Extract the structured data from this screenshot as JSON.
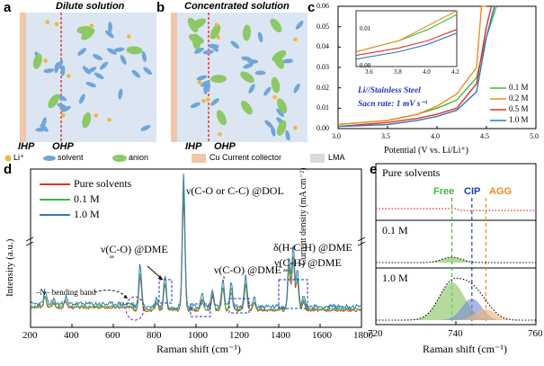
{
  "panels": {
    "a": {
      "label": "a",
      "title": "Dilute solution",
      "ihp": "IHP",
      "ohp": "OHP"
    },
    "b": {
      "label": "b",
      "title": "Concentrated solution",
      "ihp": "IHP",
      "ohp": "OHP"
    },
    "c": {
      "label": "c"
    },
    "d": {
      "label": "d"
    },
    "e": {
      "label": "e"
    }
  },
  "legend_ab": {
    "items": [
      "Li⁺",
      "solvent",
      "anion",
      "Cu Current collector",
      "LMA"
    ]
  },
  "colors": {
    "li": "#f2b63c",
    "solvent": "#6fa6d8",
    "anion": "#8cc866",
    "cu": "#f2c6a8",
    "lma": "#d9d9d9",
    "bg": "#dce6f3",
    "red": "#e0302b",
    "green": "#3dbb3d",
    "blue": "#3778b0",
    "orange": "#f08b1c",
    "navy": "#1f3fa8"
  },
  "chart_data": [
    {
      "panel": "c",
      "type": "line",
      "xlabel": "Potential (V vs. Li/Li⁺)",
      "ylabel": "Current density (mA cm⁻²)",
      "xlim": [
        3.0,
        5.0
      ],
      "ylim": [
        0.0,
        0.06
      ],
      "xticks": [
        "3.0",
        "3.5",
        "4.0",
        "4.5",
        "5.0"
      ],
      "yticks": [
        "0.00",
        "0.01",
        "0.02",
        "0.03",
        "0.04",
        "0.05",
        "0.06"
      ],
      "annotation": [
        "Li//Stainless Steel",
        "Sacn rate: 1 mV s⁻¹"
      ],
      "series": [
        {
          "name": "0.1 M",
          "color": "#3dbb3d",
          "x": [
            3.0,
            3.5,
            3.8,
            4.0,
            4.2,
            4.4,
            4.5,
            4.6
          ],
          "y": [
            0.002,
            0.004,
            0.007,
            0.01,
            0.014,
            0.025,
            0.045,
            0.06
          ]
        },
        {
          "name": "0.2 M",
          "color": "#f08b1c",
          "x": [
            3.0,
            3.5,
            3.8,
            4.0,
            4.2,
            4.4,
            4.45,
            4.5
          ],
          "y": [
            0.002,
            0.004,
            0.007,
            0.011,
            0.017,
            0.03,
            0.06,
            0.06
          ]
        },
        {
          "name": "0.5 M",
          "color": "#e0302b",
          "x": [
            3.0,
            3.5,
            3.8,
            4.0,
            4.2,
            4.4,
            4.5,
            4.55
          ],
          "y": [
            0.001,
            0.003,
            0.005,
            0.007,
            0.01,
            0.022,
            0.05,
            0.06
          ]
        },
        {
          "name": "1.0 M",
          "color": "#3778b0",
          "x": [
            3.0,
            3.5,
            3.8,
            4.0,
            4.2,
            4.4,
            4.5,
            4.58
          ],
          "y": [
            0.001,
            0.002,
            0.004,
            0.006,
            0.009,
            0.018,
            0.045,
            0.06
          ]
        }
      ],
      "inset": {
        "xlim": [
          3.5,
          4.2
        ],
        "ylim": [
          0.0,
          0.015
        ],
        "xticks": [
          "3.6",
          "3.8",
          "4.0",
          "4.2"
        ],
        "yticks": [
          "0.00",
          "0.01"
        ]
      }
    },
    {
      "panel": "d",
      "type": "line",
      "xlabel": "Raman shift (cm⁻¹)",
      "ylabel": "Intensity (a.u.)",
      "xlim": [
        200,
        1800
      ],
      "xticks": [
        "200",
        "400",
        "600",
        "800",
        "1000",
        "1200",
        "1400",
        "1600",
        "1800"
      ],
      "series": [
        {
          "name": "Pure solvents",
          "color": "#e0302b"
        },
        {
          "name": "0.1 M",
          "color": "#3dbb3d"
        },
        {
          "name": "1.0 M",
          "color": "#3778b0"
        }
      ],
      "annotations": {
        "nu_co_dol": "ν(C-O or C-C) @DOL",
        "nu_as_dme": "ν(C-O) @DME",
        "nu_as_sub": "as",
        "nu_s_dme": "ν(C-O) @DME",
        "nu_s_sub": "s",
        "delta_dme": "δ(H-C-H) @DME",
        "nu_as2_dme": "ν(C-H) @DME",
        "nu_as2_sub": "as",
        "bending": "–N– bending band"
      }
    },
    {
      "panel": "e",
      "type": "area",
      "xlabel": "Raman shift (cm⁻¹)",
      "xlim": [
        720,
        760
      ],
      "xticks": [
        "720",
        "740",
        "760"
      ],
      "rows": [
        "Pure solvents",
        "0.1 M",
        "1.0 M"
      ],
      "peaks": [
        {
          "name": "Free",
          "x": 739,
          "color": "#3dbb3d"
        },
        {
          "name": "CIP",
          "x": 744,
          "color": "#1f3fa8"
        },
        {
          "name": "AGG",
          "x": 747.5,
          "color": "#f08b1c"
        }
      ]
    }
  ]
}
